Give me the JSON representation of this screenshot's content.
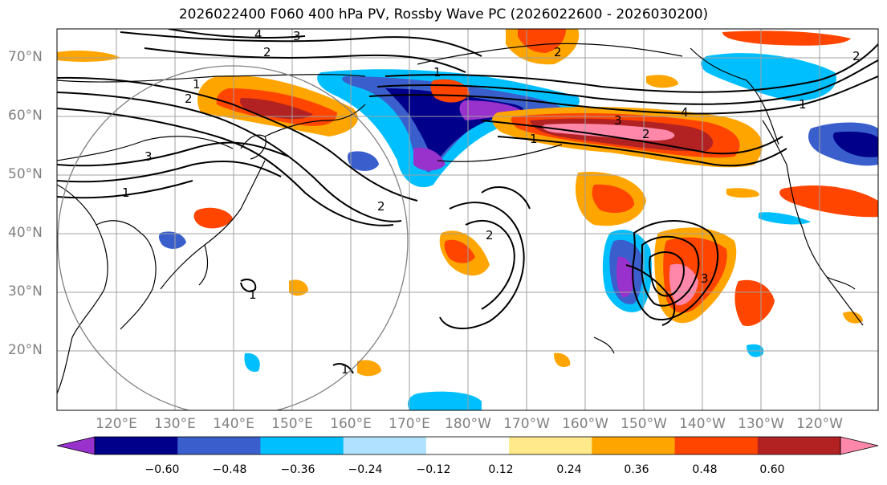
{
  "title": "2026022400 F060 400 hPa PV, Rossby Wave PC (2026022600 - 2026030200)",
  "lat_labels": [
    "70°N",
    "60°N",
    "50°N",
    "40°N",
    "30°N",
    "20°N"
  ],
  "lon_labels": [
    "120°E",
    "130°E",
    "140°E",
    "150°E",
    "160°E",
    "170°E",
    "180°W",
    "170°W",
    "160°W",
    "150°W",
    "140°W",
    "130°W",
    "120°W"
  ],
  "colorbar": {
    "colors": [
      "#9932cc",
      "#00008b",
      "#3a5fcd",
      "#00bfff",
      "#b0e2ff",
      "#ffffff",
      "#ffe98a",
      "#ffa500",
      "#ff4500",
      "#b22222",
      "#ff88aa"
    ],
    "labels": [
      "−0.60",
      "−0.48",
      "−0.36",
      "−0.24",
      "−0.12",
      "0.12",
      "0.24",
      "0.36",
      "0.48",
      "0.60"
    ]
  },
  "contour_labels": [
    "4",
    "3",
    "2",
    "1",
    "1",
    "2",
    "3",
    "2",
    "1",
    "2",
    "3",
    "1",
    "4",
    "2",
    "3",
    "2",
    "1",
    "1",
    "2",
    "1"
  ]
}
